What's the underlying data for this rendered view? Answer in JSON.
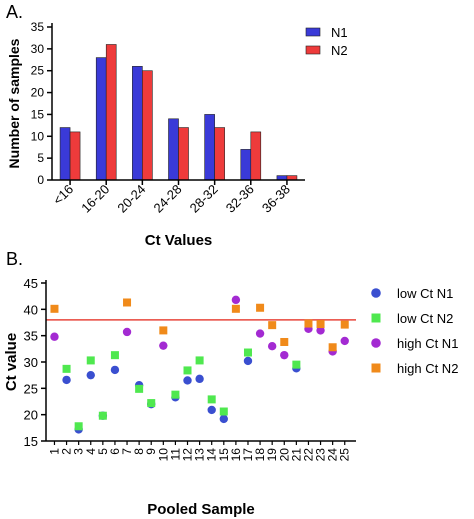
{
  "panels": {
    "a_label": "A.",
    "b_label": "B."
  },
  "colors": {
    "n1": "#3a3ad8",
    "n2": "#ee3b3b",
    "low_ct_n1": "#3a4fd0",
    "low_ct_n2": "#4fe84f",
    "high_ct_n1": "#a32ad2",
    "high_ct_n2": "#f08a1a",
    "threshold": "#e8463c",
    "axis": "#000000"
  },
  "chart_data": [
    {
      "type": "bar",
      "title": "",
      "xlabel": "Ct Values",
      "ylabel": "Number of samples",
      "categories": [
        "<16",
        "16-20",
        "20-24",
        "24-28",
        "28-32",
        "32-36",
        "36-38"
      ],
      "ylim": [
        0,
        35
      ],
      "yticks": [
        0,
        5,
        10,
        15,
        20,
        25,
        30,
        35
      ],
      "series": [
        {
          "name": "N1",
          "values": [
            12,
            28,
            26,
            14,
            15,
            7,
            1
          ]
        },
        {
          "name": "N2",
          "values": [
            11,
            31,
            25,
            12,
            12,
            11,
            1
          ]
        }
      ],
      "legend": "top-right",
      "grid": false
    },
    {
      "type": "scatter",
      "title": "",
      "xlabel": "Pooled Sample",
      "ylabel": "Ct value",
      "x_categories": [
        "1",
        "2",
        "3",
        "4",
        "5",
        "6",
        "7",
        "8",
        "9",
        "10",
        "11",
        "12",
        "13",
        "14",
        "15",
        "16",
        "17",
        "18",
        "19",
        "20",
        "21",
        "22",
        "23",
        "24",
        "25"
      ],
      "ylim": [
        15,
        45
      ],
      "yticks": [
        15,
        20,
        25,
        30,
        35,
        40,
        45
      ],
      "threshold": 38,
      "series": [
        {
          "name": "low Ct N1",
          "marker": "circle",
          "values": [
            null,
            26.6,
            17.2,
            27.5,
            19.8,
            28.5,
            null,
            25.6,
            22.0,
            null,
            23.3,
            26.5,
            26.8,
            20.9,
            19.2,
            null,
            30.2,
            null,
            null,
            null,
            28.8,
            null,
            null,
            null,
            null
          ]
        },
        {
          "name": "low Ct N2",
          "marker": "square",
          "values": [
            null,
            28.7,
            17.8,
            30.3,
            19.8,
            31.3,
            null,
            24.9,
            22.2,
            null,
            23.8,
            28.4,
            30.3,
            22.9,
            20.6,
            null,
            31.8,
            null,
            null,
            null,
            29.5,
            null,
            null,
            null,
            null
          ]
        },
        {
          "name": "high Ct N1",
          "marker": "circle",
          "values": [
            34.8,
            null,
            null,
            null,
            null,
            null,
            35.7,
            null,
            null,
            33.1,
            null,
            null,
            null,
            null,
            null,
            41.8,
            null,
            35.4,
            33.0,
            31.3,
            null,
            36.3,
            36.0,
            32.0,
            34.0
          ]
        },
        {
          "name": "high Ct N2",
          "marker": "square",
          "values": [
            40.1,
            null,
            null,
            null,
            null,
            null,
            41.3,
            null,
            null,
            36.0,
            null,
            null,
            null,
            null,
            null,
            40.1,
            null,
            40.3,
            37.0,
            33.8,
            null,
            37.3,
            37.2,
            32.8,
            37.1
          ]
        }
      ],
      "legend": "right",
      "grid": false
    }
  ]
}
